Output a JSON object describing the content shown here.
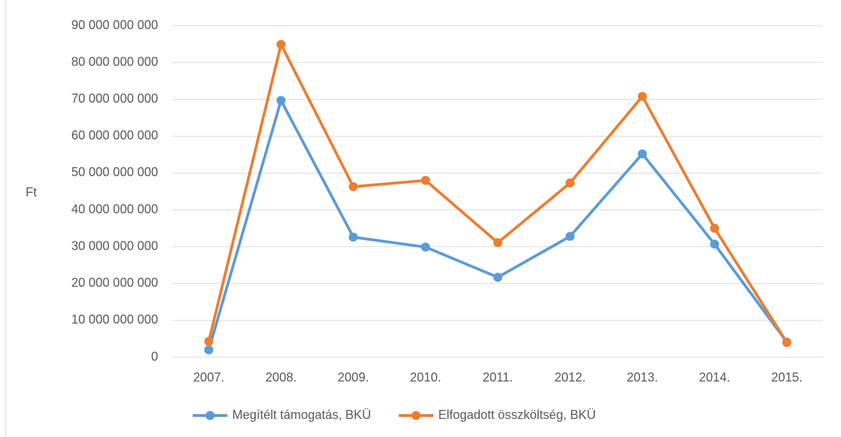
{
  "chart_data": {
    "type": "line",
    "ylabel": "Ft",
    "categories": [
      "2007.",
      "2008.",
      "2009.",
      "2010.",
      "2011.",
      "2012.",
      "2013.",
      "2014.",
      "2015."
    ],
    "series": [
      {
        "name": "Megítélt támogatás, BKÜ",
        "color": "#5b9bd5",
        "values": [
          2000000000,
          69700000000,
          32600000000,
          29900000000,
          21700000000,
          32800000000,
          55200000000,
          30700000000,
          4100000000
        ]
      },
      {
        "name": "Elfogadott összköltség, BKÜ",
        "color": "#ed7d31",
        "values": [
          4300000000,
          84900000000,
          46300000000,
          48000000000,
          31100000000,
          47300000000,
          70800000000,
          35000000000,
          4000000000
        ]
      }
    ],
    "ylim": [
      0,
      90000000000
    ],
    "yticks": [
      0,
      {
        "value": 10000000000,
        "label": "10 000 000 000"
      },
      {
        "value": 20000000000,
        "label": "20 000 000 000"
      },
      {
        "value": 30000000000,
        "label": "30 000 000 000"
      },
      {
        "value": 40000000000,
        "label": "40 000 000 000"
      },
      {
        "value": 50000000000,
        "label": "50 000 000 000"
      },
      {
        "value": 60000000000,
        "label": "60 000 000 000"
      },
      {
        "value": 70000000000,
        "label": "70 000 000 000"
      },
      {
        "value": 80000000000,
        "label": "80 000 000 000"
      },
      {
        "value": 90000000000,
        "label": "90 000 000 000"
      }
    ],
    "grid": true,
    "legend": "bottom"
  }
}
